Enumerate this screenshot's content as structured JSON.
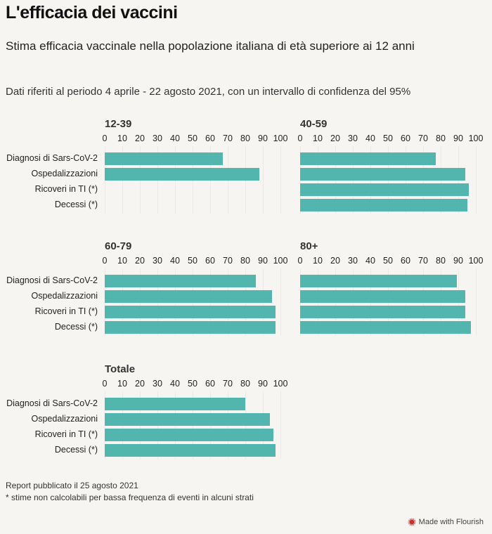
{
  "header": {
    "title": "L'efficacia dei vaccini",
    "subtitle": "Stima efficacia vaccinale nella popolazione italiana di età superiore ai 12 anni",
    "note": "Dati riferiti al periodo 4 aprile - 22 agosto 2021, con un intervallo di confidenza del 95%"
  },
  "footer": {
    "line1": "Report pubblicato il 25 agosto 2021",
    "line2": "* stime non calcolabili per bassa frequenza di eventi in alcuni strati",
    "brand": "Made with Flourish",
    "brand_icon": "flourish-logo-icon",
    "brand_color": "#c9302c"
  },
  "colors": {
    "bar": "#52b5ae",
    "background": "#f6f5f2"
  },
  "chart_data": {
    "type": "bar",
    "orientation": "horizontal",
    "title": "L'efficacia dei vaccini",
    "subtitle": "Stima efficacia vaccinale nella popolazione italiana di età superiore ai 12 anni",
    "xlabel": "",
    "ylabel": "",
    "xlim": [
      0,
      100
    ],
    "ticks": [
      0,
      10,
      20,
      30,
      40,
      50,
      60,
      70,
      80,
      90,
      100
    ],
    "grid": true,
    "categories": [
      "Diagnosi di Sars-CoV-2",
      "Ospedalizzazioni",
      "Ricoveri in TI (*)",
      "Decessi (*)"
    ],
    "panels": [
      {
        "name": "12-39",
        "values": [
          67,
          88,
          null,
          null
        ]
      },
      {
        "name": "40-59",
        "values": [
          77,
          94,
          96,
          95
        ]
      },
      {
        "name": "60-79",
        "values": [
          86,
          95,
          97,
          97
        ]
      },
      {
        "name": "80+",
        "values": [
          89,
          94,
          94,
          97
        ]
      },
      {
        "name": "Totale",
        "values": [
          80,
          94,
          96,
          97
        ]
      }
    ]
  }
}
